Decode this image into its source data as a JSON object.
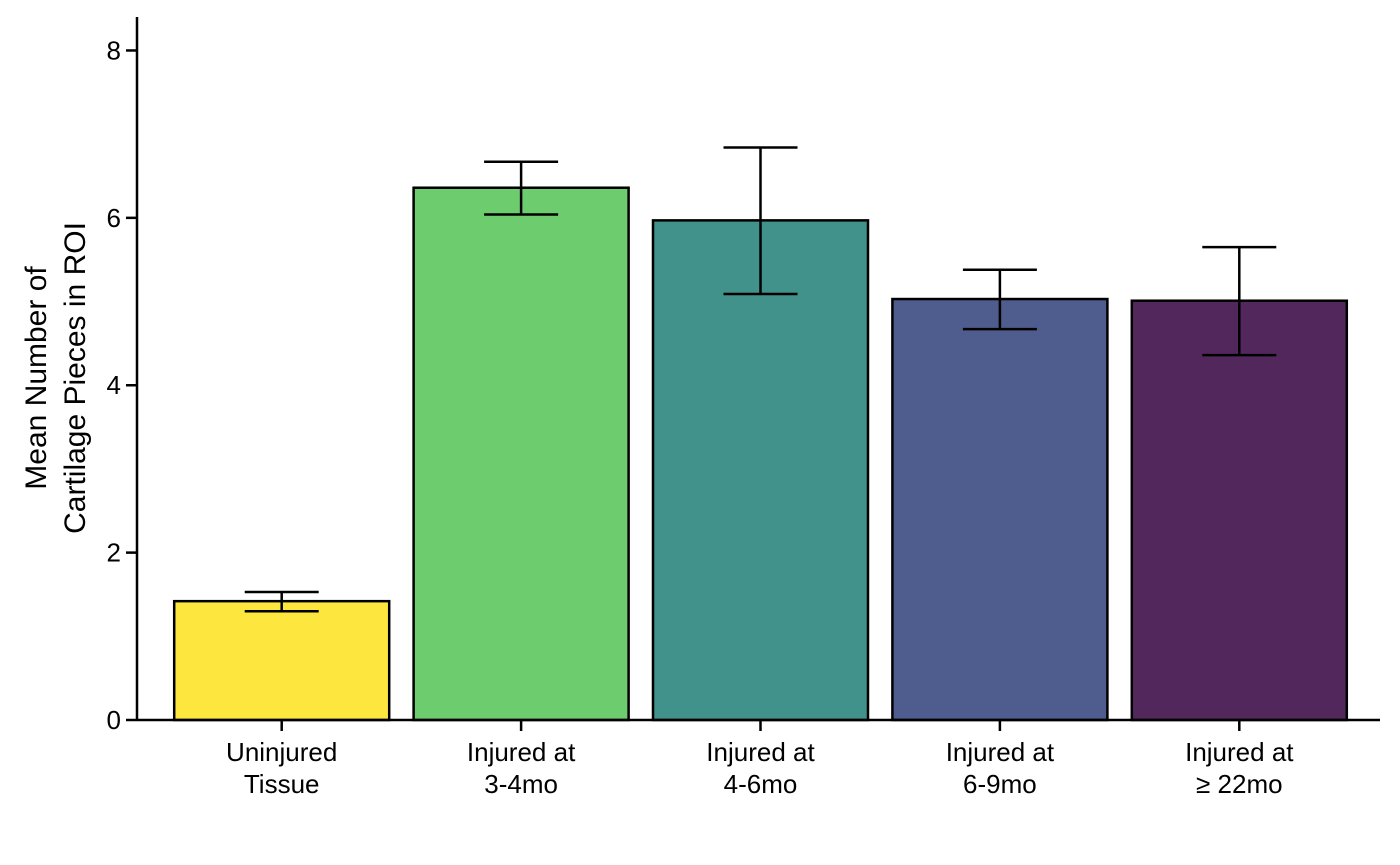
{
  "chart_data": {
    "type": "bar",
    "categories": [
      [
        "Uninjured",
        "Tissue"
      ],
      [
        "Injured at",
        "3-4mo"
      ],
      [
        "Injured at",
        "4-6mo"
      ],
      [
        "Injured at",
        "6-9mo"
      ],
      [
        "Injured at",
        "≥ 22mo"
      ]
    ],
    "values": [
      1.42,
      6.36,
      5.97,
      5.03,
      5.01
    ],
    "error_low": [
      1.3,
      6.04,
      5.09,
      4.67,
      4.36
    ],
    "error_high": [
      1.53,
      6.67,
      6.84,
      5.38,
      5.65
    ],
    "colors": [
      "#FDE73F",
      "#6DCC6E",
      "#42928C",
      "#4E5D8D",
      "#52285C"
    ],
    "ylabel": [
      "Mean Number of",
      "Cartilage Pieces in ROI"
    ],
    "xlabel": "",
    "ylim": [
      0,
      8.4
    ],
    "yticks": [
      0,
      2,
      4,
      6,
      8
    ],
    "grid": false
  }
}
